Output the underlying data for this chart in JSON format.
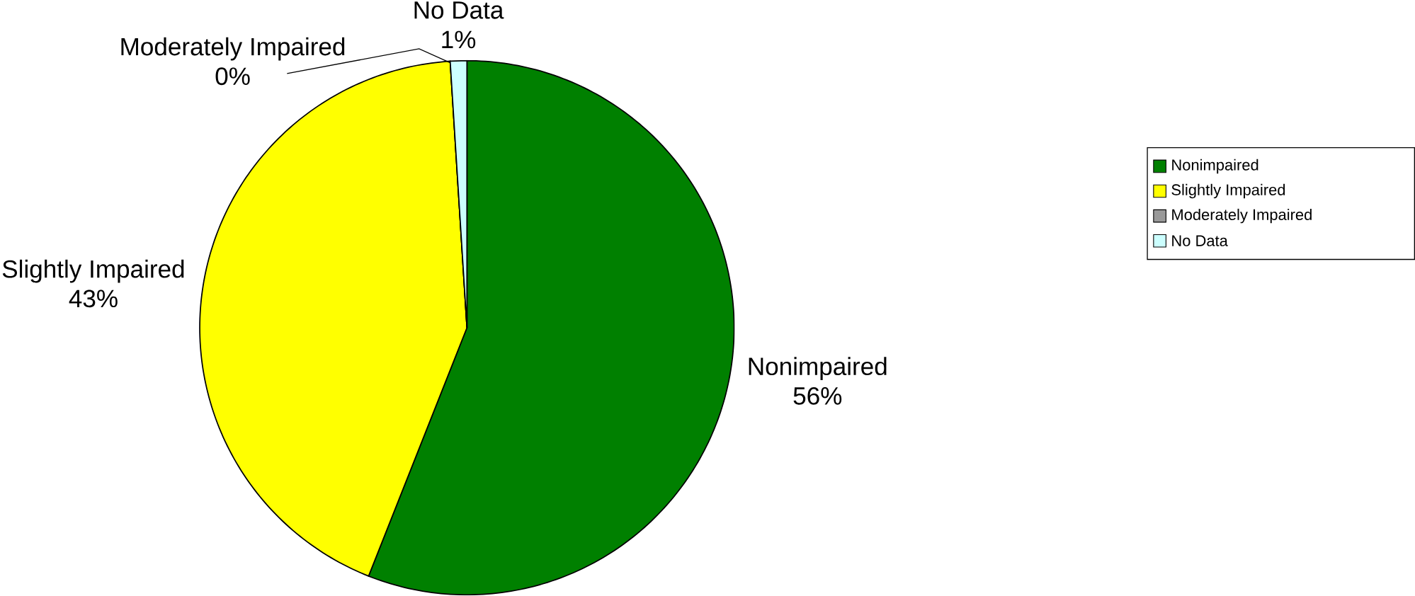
{
  "chart_data": {
    "type": "pie",
    "categories": [
      "Nonimpaired",
      "Slightly Impaired",
      "Moderately Impaired",
      "No Data"
    ],
    "values": [
      56,
      43,
      0,
      1
    ],
    "value_labels": [
      "56%",
      "43%",
      "0%",
      "1%"
    ],
    "colors": [
      "#008000",
      "#ffff00",
      "#999999",
      "#ccffff"
    ],
    "legend": "right"
  }
}
